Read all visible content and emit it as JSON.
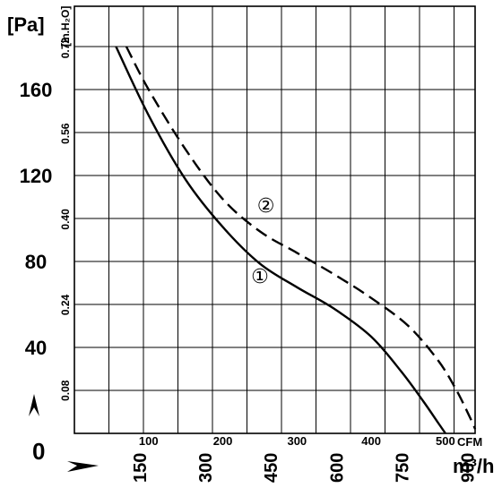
{
  "chart_data": {
    "type": "line",
    "title": "",
    "y_axis_left": {
      "unit": "[Pa]",
      "ticks": [
        0,
        40,
        80,
        120,
        160
      ],
      "range": [
        0,
        180
      ]
    },
    "y_axis_inner": {
      "unit": "[in.H₂O]",
      "ticks": [
        "0.08",
        "0.24",
        "0.40",
        "0.56",
        "0.72"
      ],
      "values": [
        0.08,
        0.24,
        0.4,
        0.56,
        0.72
      ]
    },
    "x_axis_cfm": {
      "unit": "CFM",
      "ticks": [
        "100",
        "200",
        "300",
        "400",
        "500"
      ],
      "values": [
        100,
        200,
        300,
        400,
        500
      ]
    },
    "x_axis_m3h": {
      "unit": "m³/h",
      "ticks": [
        "150",
        "300",
        "450",
        "600",
        "750",
        "900"
      ],
      "values": [
        150,
        300,
        450,
        600,
        750,
        900
      ]
    },
    "x_range_cfm": [
      0,
      540
    ],
    "grid": true,
    "series": [
      {
        "name": "①",
        "style": "solid",
        "color": "#000000",
        "points": [
          [
            56,
            180
          ],
          [
            100,
            148
          ],
          [
            150,
            118
          ],
          [
            200,
            96
          ],
          [
            250,
            79
          ],
          [
            300,
            68
          ],
          [
            350,
            58
          ],
          [
            400,
            45
          ],
          [
            440,
            29
          ],
          [
            470,
            15
          ],
          [
            490,
            5
          ],
          [
            500,
            0
          ]
        ]
      },
      {
        "name": "②",
        "style": "dashed",
        "color": "#000000",
        "points": [
          [
            70,
            180
          ],
          [
            100,
            160
          ],
          [
            150,
            132
          ],
          [
            200,
            109
          ],
          [
            250,
            94
          ],
          [
            300,
            84
          ],
          [
            350,
            74
          ],
          [
            400,
            63
          ],
          [
            450,
            50
          ],
          [
            490,
            34
          ],
          [
            515,
            20
          ],
          [
            535,
            6
          ],
          [
            540,
            2
          ]
        ]
      }
    ]
  },
  "labels": {
    "zero": "0",
    "arrow_up": "↑",
    "arrow_right": "→"
  },
  "colors": {
    "grid": "#000000",
    "background": "#ffffff"
  }
}
